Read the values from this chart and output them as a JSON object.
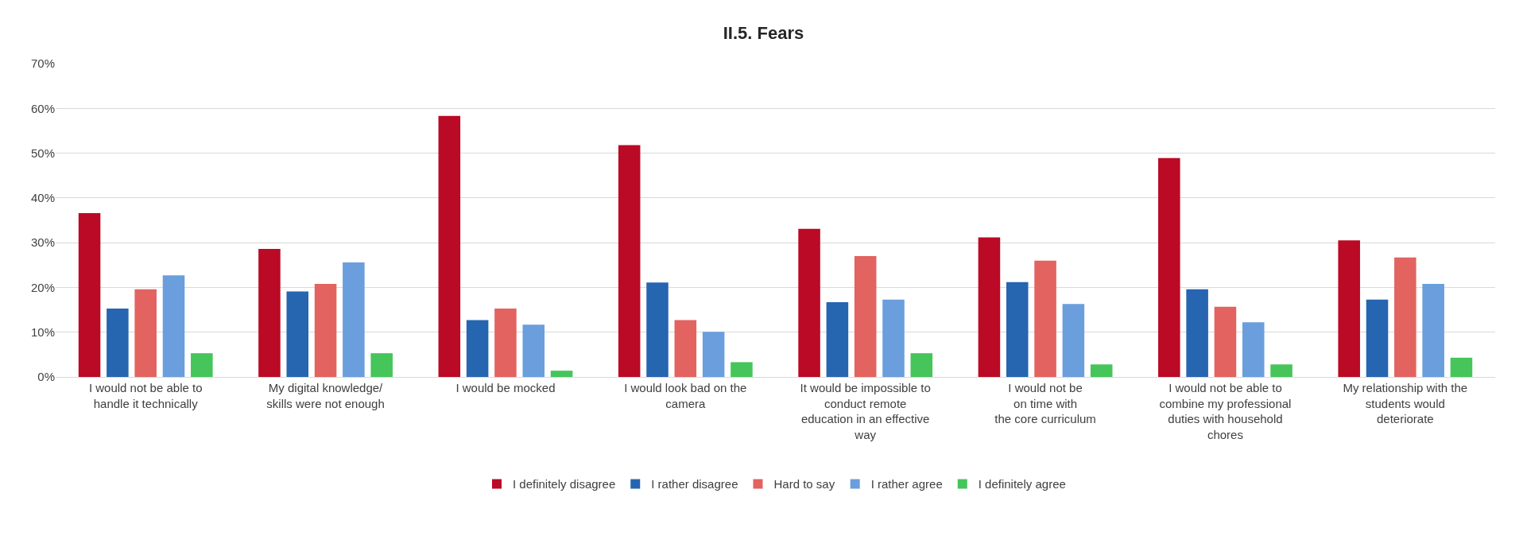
{
  "chart_data": {
    "type": "bar",
    "title": "II.5. Fears",
    "categories": [
      "I would not be able to\nhandle it technically",
      "My digital knowledge/\nskills were not enough",
      "I would be mocked",
      "I would look bad on the\ncamera",
      "It would be impossible to\nconduct remote\neducation in an effective\nway",
      "I would not be\non time with\nthe core curriculum",
      "I would not be able to\ncombine my professional\nduties with household\nchores",
      "My relationship with the\nstudents would\ndeteriorate"
    ],
    "series": [
      {
        "name": "I definitely disagree",
        "color": "#ba0a25",
        "values": [
          36.6,
          28.6,
          58.3,
          51.8,
          33.1,
          31.2,
          48.9,
          30.5
        ]
      },
      {
        "name": "I rather disagree",
        "color": "#2665b0",
        "values": [
          15.3,
          19.1,
          12.7,
          21.1,
          16.7,
          21.2,
          19.6,
          17.3
        ]
      },
      {
        "name": "Hard to say",
        "color": "#e2635f",
        "values": [
          19.6,
          20.8,
          15.3,
          12.7,
          27.0,
          26.0,
          15.7,
          26.7
        ]
      },
      {
        "name": "I rather agree",
        "color": "#6a9edc",
        "values": [
          22.7,
          25.6,
          11.7,
          10.1,
          17.3,
          16.3,
          12.2,
          20.8
        ]
      },
      {
        "name": "I definitely agree",
        "color": "#45c55a",
        "values": [
          5.3,
          5.3,
          1.4,
          3.3,
          5.3,
          2.8,
          2.8,
          4.3
        ]
      }
    ],
    "ylim": [
      0,
      70
    ],
    "yticks": [
      {
        "value": 0,
        "label": "0%"
      },
      {
        "value": 10,
        "label": "10%"
      },
      {
        "value": 20,
        "label": "20%"
      },
      {
        "value": 30,
        "label": "30%"
      },
      {
        "value": 40,
        "label": "40%"
      },
      {
        "value": 50,
        "label": "50%"
      },
      {
        "value": 60,
        "label": "60%"
      },
      {
        "value": 70,
        "label": "70%"
      }
    ],
    "grid": "y",
    "legend": "bottom"
  }
}
